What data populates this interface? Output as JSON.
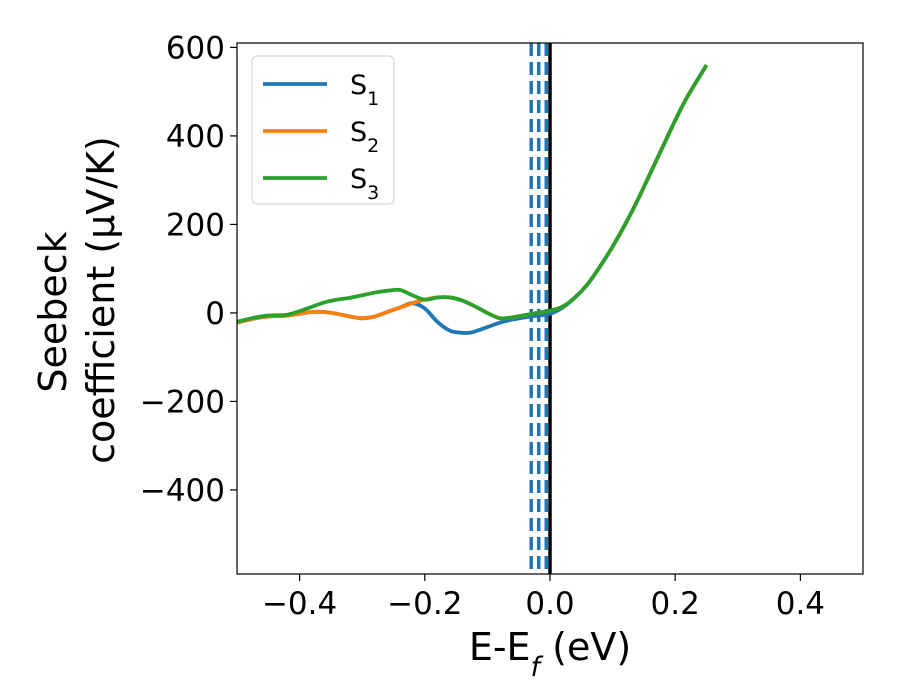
{
  "chart_data": {
    "type": "line",
    "xlabel": "E-E",
    "xlabel_sub": "f",
    "xlabel_unit": " (eV)",
    "ylabel_line1": "Seebeck",
    "ylabel_line2": "coefficient  (μV/K)",
    "xlim": [
      -0.5,
      0.5
    ],
    "ylim": [
      -590,
      610
    ],
    "xticks": [
      -0.4,
      -0.2,
      0.0,
      0.2,
      0.4
    ],
    "xtick_labels": [
      "−0.4",
      "−0.2",
      "0.0",
      "0.2",
      "0.4"
    ],
    "yticks": [
      600,
      400,
      200,
      0,
      -200,
      -400
    ],
    "ytick_labels": [
      "600",
      "400",
      "200",
      "0",
      "−200",
      "−400"
    ],
    "grid": false,
    "legend_position": "top-left",
    "vlines": [
      {
        "x": -0.03,
        "style": "dashed",
        "color": "#1f77b4"
      },
      {
        "x": -0.018,
        "style": "dashed",
        "color": "#1f77b4"
      },
      {
        "x": -0.006,
        "style": "dashed",
        "color": "#1f77b4"
      },
      {
        "x": 0.0,
        "style": "solid",
        "color": "#000000"
      }
    ],
    "series": [
      {
        "name": "S",
        "sub": "1",
        "color": "#1f77b4",
        "x": [
          -0.5,
          -0.47,
          -0.45,
          -0.42,
          -0.4,
          -0.38,
          -0.36,
          -0.34,
          -0.32,
          -0.3,
          -0.28,
          -0.26,
          -0.24,
          -0.22,
          -0.2,
          -0.18,
          -0.16,
          -0.14,
          -0.13,
          -0.12,
          -0.1,
          -0.08,
          -0.06,
          -0.04,
          -0.02,
          0.0,
          0.02,
          0.04,
          0.06,
          0.08,
          0.1,
          0.12,
          0.14,
          0.16,
          0.18,
          0.2,
          0.22,
          0.25
        ],
        "y": [
          -22,
          -12,
          -8,
          -6,
          -2,
          2,
          2,
          -2,
          -8,
          -12,
          -8,
          2,
          12,
          22,
          10,
          -20,
          -40,
          -45,
          -45,
          -42,
          -32,
          -22,
          -15,
          -10,
          -6,
          -2,
          12,
          35,
          65,
          105,
          150,
          200,
          255,
          315,
          375,
          435,
          490,
          560
        ]
      },
      {
        "name": "S",
        "sub": "2",
        "color": "#ff7f0e",
        "x": [
          -0.5,
          -0.47,
          -0.45,
          -0.42,
          -0.4,
          -0.38,
          -0.36,
          -0.34,
          -0.32,
          -0.3,
          -0.28,
          -0.26,
          -0.24,
          -0.22,
          -0.2,
          -0.18,
          -0.16,
          -0.14,
          -0.12,
          -0.1,
          -0.08,
          -0.06,
          -0.04,
          -0.02,
          0.0,
          0.02,
          0.04,
          0.06,
          0.08,
          0.1,
          0.12,
          0.14,
          0.16,
          0.18,
          0.2,
          0.22,
          0.25
        ],
        "y": [
          -22,
          -12,
          -8,
          -6,
          -2,
          2,
          2,
          -2,
          -8,
          -12,
          -8,
          2,
          12,
          22,
          30,
          35,
          35,
          28,
          15,
          0,
          -12,
          -10,
          -5,
          0,
          5,
          14,
          35,
          65,
          105,
          150,
          200,
          255,
          315,
          375,
          435,
          490,
          560
        ]
      },
      {
        "name": "S",
        "sub": "3",
        "color": "#2ca02c",
        "x": [
          -0.5,
          -0.47,
          -0.45,
          -0.42,
          -0.4,
          -0.38,
          -0.36,
          -0.34,
          -0.32,
          -0.3,
          -0.28,
          -0.26,
          -0.24,
          -0.22,
          -0.2,
          -0.18,
          -0.16,
          -0.14,
          -0.12,
          -0.1,
          -0.08,
          -0.06,
          -0.04,
          -0.02,
          0.0,
          0.02,
          0.04,
          0.06,
          0.08,
          0.1,
          0.12,
          0.14,
          0.16,
          0.18,
          0.2,
          0.22,
          0.25
        ],
        "y": [
          -20,
          -10,
          -6,
          -4,
          4,
          14,
          24,
          30,
          34,
          40,
          46,
          50,
          52,
          40,
          30,
          35,
          35,
          28,
          15,
          0,
          -12,
          -10,
          -5,
          0,
          5,
          14,
          35,
          65,
          105,
          150,
          200,
          255,
          315,
          375,
          435,
          490,
          560
        ]
      }
    ]
  }
}
